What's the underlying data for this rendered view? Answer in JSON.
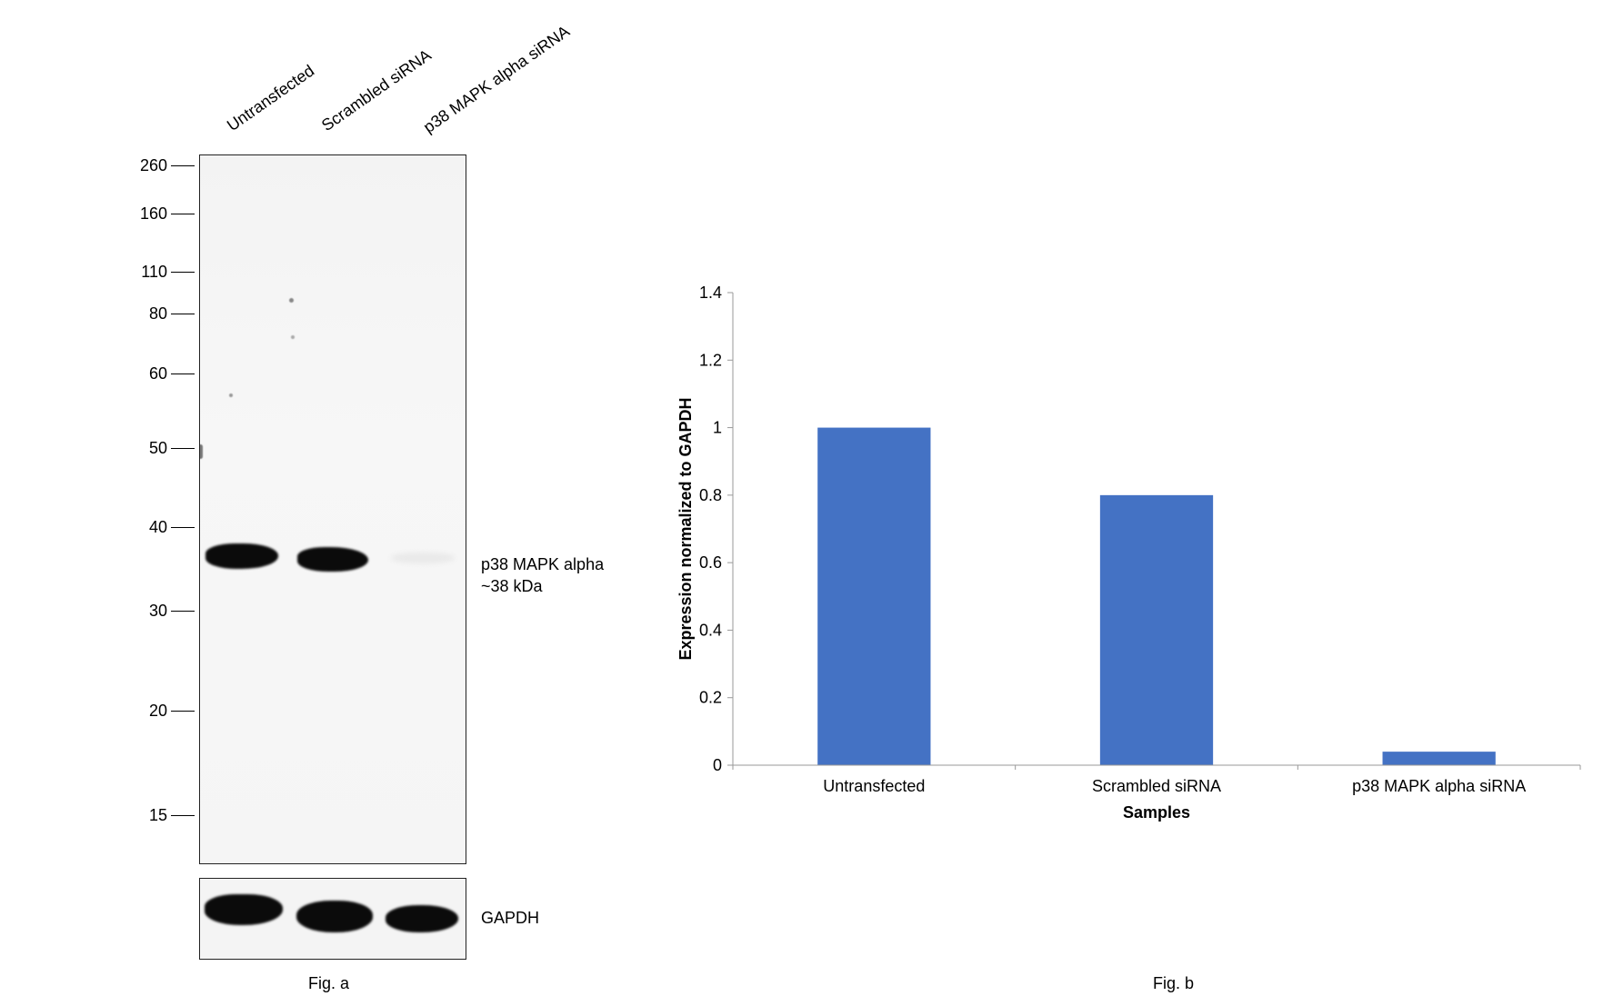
{
  "figure_a": {
    "lane_labels": [
      "Untransfected",
      "Scrambled siRNA",
      "p38 MAPK alpha siRNA"
    ],
    "mw_markers": [
      "260",
      "160",
      "110",
      "80",
      "60",
      "50",
      "40",
      "30",
      "20",
      "15"
    ],
    "target_label_line1": "p38 MAPK alpha",
    "target_label_line2": "~38 kDa",
    "loading_control_label": "GAPDH",
    "caption": "Fig. a"
  },
  "figure_b": {
    "caption": "Fig. b"
  },
  "chart_data": {
    "type": "bar",
    "categories": [
      "Untransfected",
      "Scrambled siRNA",
      "p38 MAPK alpha siRNA"
    ],
    "values": [
      1.0,
      0.8,
      0.04
    ],
    "title": "",
    "xlabel": "Samples",
    "ylabel": "Expression normalized to GAPDH",
    "ylim": [
      0,
      1.4
    ],
    "yticks": [
      "0",
      "0.2",
      "0.4",
      "0.6",
      "0.8",
      "1",
      "1.2",
      "1.4"
    ],
    "bar_color": "#4472C4",
    "grid": false,
    "legend": "none"
  }
}
